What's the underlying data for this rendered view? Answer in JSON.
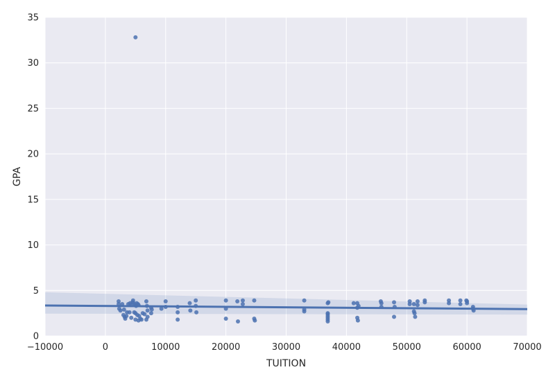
{
  "chart_data": {
    "type": "scatter",
    "title": "",
    "xlabel": "TUITION",
    "ylabel": "GPA",
    "xlim": [
      -10000,
      70000
    ],
    "ylim": [
      0,
      35
    ],
    "xticks": [
      -10000,
      0,
      10000,
      20000,
      30000,
      40000,
      50000,
      60000,
      70000
    ],
    "yticks": [
      0,
      5,
      10,
      15,
      20,
      25,
      30,
      35
    ],
    "grid": true,
    "background": "#EAEAF2",
    "point_color": "#4C72B0",
    "regression_line": {
      "x": [
        -10000,
        70000
      ],
      "y": [
        3.35,
        2.95
      ]
    },
    "confidence_band": {
      "x": [
        -10000,
        70000
      ],
      "upper": [
        4.8,
        3.45
      ],
      "lower": [
        2.45,
        2.35
      ]
    },
    "x": [
      2200,
      2200,
      2300,
      2500,
      2800,
      3000,
      3100,
      3200,
      3300,
      3500,
      3600,
      3800,
      4000,
      4100,
      4200,
      4300,
      4500,
      4600,
      4700,
      4800,
      4900,
      5000,
      5000,
      5100,
      5200,
      5300,
      5400,
      5500,
      5500,
      5600,
      5800,
      6000,
      6200,
      6500,
      6800,
      6800,
      6900,
      7000,
      7000,
      7600,
      7600,
      7700,
      9300,
      10000,
      10000,
      12000,
      12000,
      12000,
      14000,
      14100,
      15000,
      15000,
      15100,
      20000,
      20000,
      20000,
      21900,
      22000,
      22800,
      22800,
      24700,
      24700,
      24800,
      33000,
      33000,
      33000,
      36900,
      36900,
      36900,
      36900,
      36900,
      36900,
      36900,
      37000,
      41200,
      41800,
      41800,
      41800,
      41900,
      42000,
      45700,
      45800,
      45800,
      47900,
      47900,
      48000,
      50500,
      50500,
      51200,
      51200,
      51300,
      51400,
      51800,
      51800,
      53000,
      53000,
      57000,
      57000,
      58900,
      58900,
      59900,
      60000,
      60000,
      61000,
      61000,
      61100,
      5000
    ],
    "y": [
      3.8,
      3.5,
      3.0,
      2.8,
      3.5,
      2.3,
      2.9,
      2.1,
      1.9,
      2.2,
      2.6,
      3.5,
      2.6,
      3.6,
      3.4,
      2.0,
      3.7,
      3.9,
      3.6,
      2.6,
      3.4,
      1.8,
      2.5,
      3.3,
      3.6,
      2.3,
      3.5,
      1.7,
      3.4,
      2.2,
      1.9,
      1.8,
      2.5,
      2.4,
      1.8,
      3.8,
      3.3,
      2.8,
      2.1,
      2.5,
      3.1,
      2.9,
      3.0,
      3.8,
      3.2,
      3.2,
      2.6,
      1.8,
      3.6,
      2.8,
      3.9,
      3.3,
      2.6,
      3.9,
      3.0,
      1.9,
      3.8,
      1.6,
      3.9,
      3.5,
      3.9,
      1.9,
      1.7,
      3.9,
      2.9,
      2.7,
      3.6,
      2.5,
      2.4,
      2.2,
      2.0,
      1.8,
      1.6,
      3.7,
      3.6,
      3.6,
      3.1,
      2.0,
      1.7,
      3.3,
      3.8,
      3.6,
      3.2,
      3.7,
      2.1,
      3.2,
      3.8,
      3.5,
      3.5,
      2.7,
      2.5,
      2.1,
      3.8,
      3.4,
      3.9,
      3.7,
      3.9,
      3.6,
      3.9,
      3.5,
      3.9,
      3.6,
      3.8,
      3.2,
      3.0,
      2.8,
      32.8
    ]
  }
}
